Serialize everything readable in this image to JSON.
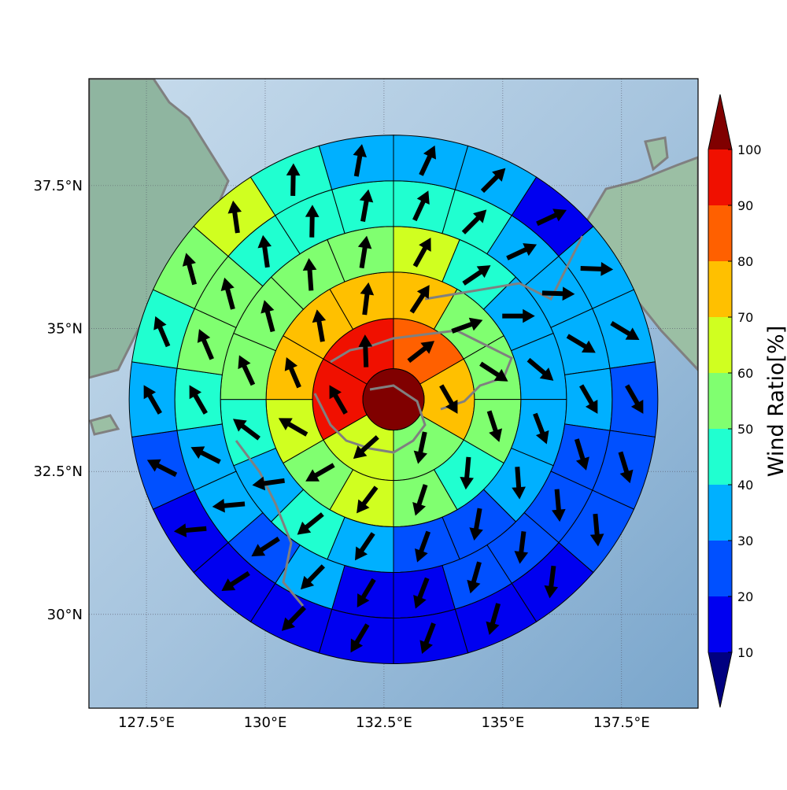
{
  "chart_data": {
    "type": "polar_sector_map",
    "xlim": [
      126.29,
      139.11
    ],
    "ylim": [
      28.36,
      39.37
    ],
    "xticks": [
      {
        "value": 127.5,
        "label": "127.5°E"
      },
      {
        "value": 130,
        "label": "130°E"
      },
      {
        "value": 132.5,
        "label": "132.5°E"
      },
      {
        "value": 135,
        "label": "135°E"
      },
      {
        "value": 137.5,
        "label": "137.5°E"
      }
    ],
    "yticks": [
      {
        "value": 30,
        "label": "30°N"
      },
      {
        "value": 32.5,
        "label": "32.5°N"
      },
      {
        "value": 35,
        "label": "35°N"
      },
      {
        "value": 37.5,
        "label": "37.5°N"
      }
    ],
    "grid": true,
    "center": [
      132.7,
      33.76
    ],
    "ring_radii": [
      0.646,
      1.705,
      2.682,
      3.642,
      4.603,
      5.563
    ],
    "center_value": 105,
    "rings": [
      {
        "values": [
          85,
          75,
          55,
          65,
          95,
          95
        ],
        "directions": [
          52,
          150,
          192,
          228,
          330,
          358
        ]
      },
      {
        "values": [
          75,
          55,
          55,
          55,
          45,
          55,
          65,
          55,
          65,
          75,
          75,
          75
        ],
        "directions": [
          33,
          70,
          123,
          162,
          185,
          198,
          217,
          240,
          300,
          337,
          350,
          7
        ]
      },
      {
        "values": [
          65,
          45,
          35,
          35,
          35,
          35,
          25,
          25,
          35,
          45,
          35,
          45,
          55,
          55,
          55,
          55
        ],
        "directions": [
          29,
          56,
          90,
          130,
          159,
          176,
          190,
          200,
          214,
          231,
          262,
          307,
          335,
          345,
          356,
          9
        ]
      },
      {
        "values": [
          45,
          45,
          35,
          35,
          35,
          35,
          25,
          25,
          25,
          25,
          15,
          15,
          35,
          25,
          35,
          35,
          45,
          55,
          55,
          45,
          45,
          45
        ],
        "directions": [
          25,
          45,
          65,
          92,
          121,
          150,
          163,
          175,
          187,
          196,
          201,
          211,
          224,
          237,
          265,
          297,
          330,
          337,
          345,
          352,
          1,
          10
        ]
      },
      {
        "values": [
          35,
          35,
          15,
          35,
          35,
          25,
          25,
          25,
          15,
          15,
          15,
          15,
          15,
          15,
          15,
          25,
          35,
          45,
          55,
          65,
          45,
          35
        ],
        "directions": [
          25,
          45,
          65,
          92,
          121,
          150,
          163,
          175,
          187,
          196,
          201,
          211,
          224,
          237,
          265,
          297,
          330,
          337,
          345,
          352,
          1,
          10
        ]
      }
    ],
    "colorbar": {
      "label": "Wind Ratio[%]",
      "ticks": [
        10,
        20,
        30,
        40,
        50,
        60,
        70,
        80,
        90,
        100
      ],
      "colors": [
        "#0000f0",
        "#0050ff",
        "#00b0ff",
        "#20ffd0",
        "#80ff70",
        "#d0ff20",
        "#ffc000",
        "#ff6000",
        "#f01000"
      ],
      "under_color": "#000080",
      "over_color": "#800000"
    }
  }
}
